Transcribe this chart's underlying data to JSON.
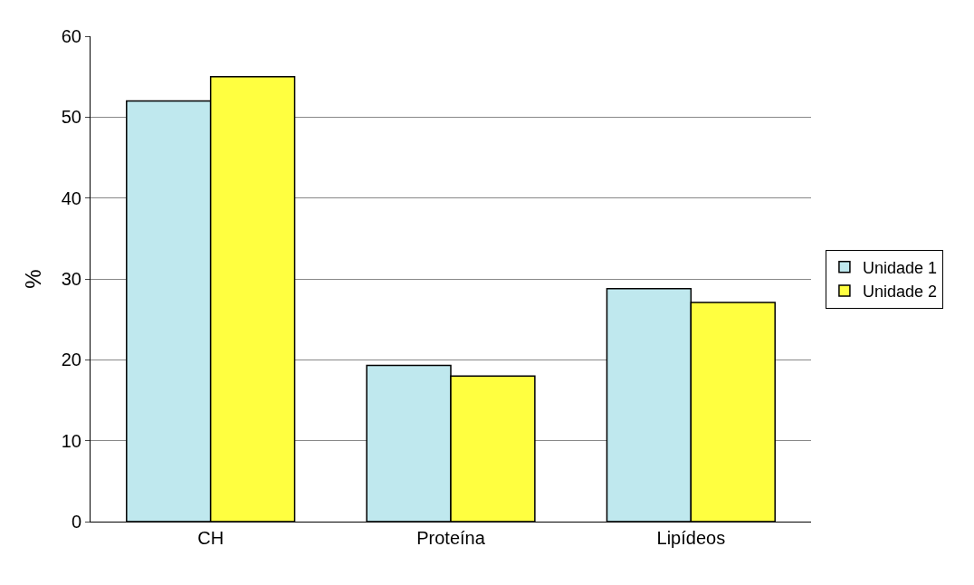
{
  "chart_data": {
    "type": "bar",
    "ylabel": "%",
    "categories": [
      "CH",
      "Proteína",
      "Lipídeos"
    ],
    "series": [
      {
        "name": "Unidade 1",
        "color": "#bfe8ee",
        "values": [
          52,
          19.3,
          28.8
        ]
      },
      {
        "name": "Unidade 2",
        "color": "#ffff40",
        "values": [
          55,
          18,
          27.1
        ]
      }
    ],
    "ylim": [
      0,
      60
    ],
    "yticks": [
      0,
      10,
      20,
      30,
      40,
      50,
      60
    ],
    "grid": "y",
    "legend": "right"
  }
}
